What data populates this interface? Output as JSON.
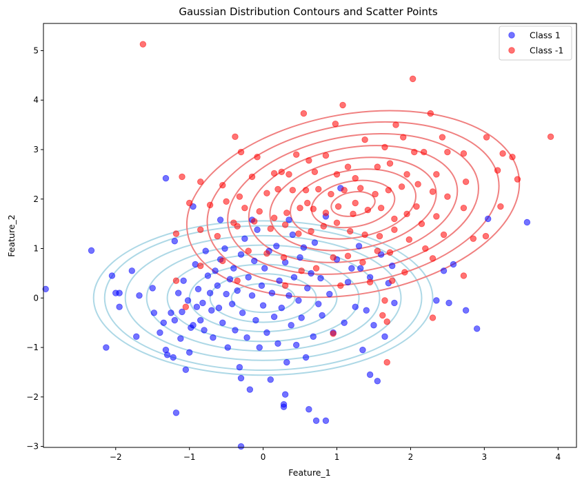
{
  "chart_data": {
    "type": "scatter",
    "title": "Gaussian Distribution Contours and Scatter Points",
    "xlabel": "Feature_1",
    "ylabel": "Feature_2",
    "xlim": [
      -2.98,
      4.25
    ],
    "ylim": [
      -3.02,
      5.55
    ],
    "xticks": [
      -2,
      -1,
      0,
      1,
      2,
      3,
      4
    ],
    "yticks": [
      -3,
      -2,
      -1,
      0,
      1,
      2,
      3,
      4,
      5
    ],
    "grid": false,
    "legend": {
      "placement": "top-right"
    },
    "series": [
      {
        "name": "Class 1",
        "color": "#0000ff",
        "points": [
          [
            -2.33,
            0.96
          ],
          [
            -2.95,
            0.18
          ],
          [
            -2.13,
            -1.0
          ],
          [
            -2.05,
            0.45
          ],
          [
            -2.0,
            0.1
          ],
          [
            -1.95,
            0.1
          ],
          [
            -1.95,
            -0.18
          ],
          [
            -1.78,
            0.55
          ],
          [
            -1.72,
            -0.78
          ],
          [
            -1.68,
            0.05
          ],
          [
            -1.32,
            2.42
          ],
          [
            -1.5,
            0.2
          ],
          [
            -1.48,
            -0.3
          ],
          [
            -1.4,
            -0.7
          ],
          [
            -1.35,
            -0.5
          ],
          [
            -1.32,
            -1.05
          ],
          [
            -1.3,
            -1.15
          ],
          [
            -1.25,
            -0.3
          ],
          [
            -1.22,
            -1.2
          ],
          [
            -1.2,
            -0.45
          ],
          [
            -1.18,
            -2.32
          ],
          [
            -1.15,
            0.1
          ],
          [
            -1.12,
            -0.82
          ],
          [
            -1.1,
            -0.28
          ],
          [
            -1.08,
            0.35
          ],
          [
            -1.05,
            -1.45
          ],
          [
            -1.02,
            -0.05
          ],
          [
            -1.0,
            -1.1
          ],
          [
            -0.98,
            -0.6
          ],
          [
            -0.95,
            -0.55
          ],
          [
            -0.92,
            0.68
          ],
          [
            -0.9,
            -0.18
          ],
          [
            -0.88,
            0.18
          ],
          [
            -0.85,
            -0.45
          ],
          [
            -0.82,
            -0.1
          ],
          [
            -0.8,
            -0.65
          ],
          [
            -0.78,
            0.95
          ],
          [
            -0.75,
            0.45
          ],
          [
            -0.72,
            0.1
          ],
          [
            -0.7,
            -0.25
          ],
          [
            -0.68,
            -0.8
          ],
          [
            -0.65,
            0.55
          ],
          [
            -0.62,
            0.25
          ],
          [
            -0.6,
            -0.2
          ],
          [
            -0.58,
            0.78
          ],
          [
            -0.55,
            -0.5
          ],
          [
            -0.52,
            1.0
          ],
          [
            -0.5,
            0.08
          ],
          [
            -0.48,
            -1.0
          ],
          [
            -0.45,
            0.38
          ],
          [
            -0.42,
            -0.12
          ],
          [
            -0.4,
            0.6
          ],
          [
            -0.38,
            -0.65
          ],
          [
            -0.35,
            0.15
          ],
          [
            -0.32,
            -1.4
          ],
          [
            -0.3,
            0.88
          ],
          [
            -0.28,
            -0.3
          ],
          [
            -0.25,
            1.2
          ],
          [
            -0.22,
            -0.8
          ],
          [
            -0.2,
            0.42
          ],
          [
            -0.18,
            -1.85
          ],
          [
            -0.15,
            0.05
          ],
          [
            -0.12,
            0.75
          ],
          [
            -0.1,
            -0.45
          ],
          [
            -0.08,
            1.38
          ],
          [
            -0.05,
            -1.0
          ],
          [
            -0.02,
            0.25
          ],
          [
            0.0,
            -0.15
          ],
          [
            0.02,
            0.6
          ],
          [
            0.05,
            -0.7
          ],
          [
            0.08,
            0.95
          ],
          [
            0.1,
            -1.65
          ],
          [
            0.12,
            0.1
          ],
          [
            0.15,
            -0.38
          ],
          [
            0.18,
            1.05
          ],
          [
            0.2,
            -0.92
          ],
          [
            0.22,
            0.35
          ],
          [
            0.25,
            -0.2
          ],
          [
            0.28,
            -2.2
          ],
          [
            0.3,
            0.72
          ],
          [
            0.32,
            -1.3
          ],
          [
            0.35,
            0.05
          ],
          [
            0.38,
            -0.55
          ],
          [
            0.4,
            1.28
          ],
          [
            0.42,
            0.42
          ],
          [
            0.45,
            -0.95
          ],
          [
            0.48,
            -0.05
          ],
          [
            0.5,
            0.82
          ],
          [
            0.52,
            -0.4
          ],
          [
            0.55,
            1.02
          ],
          [
            0.58,
            -1.2
          ],
          [
            0.6,
            0.2
          ],
          [
            0.62,
            -2.25
          ],
          [
            0.65,
            0.5
          ],
          [
            0.68,
            -0.78
          ],
          [
            0.7,
            1.12
          ],
          [
            0.72,
            -2.48
          ],
          [
            0.75,
            -0.12
          ],
          [
            0.78,
            0.4
          ],
          [
            0.8,
            -0.35
          ],
          [
            0.85,
            -2.48
          ],
          [
            0.85,
            1.65
          ],
          [
            0.9,
            0.08
          ],
          [
            0.95,
            -0.7
          ],
          [
            1.0,
            0.78
          ],
          [
            1.05,
            2.22
          ],
          [
            1.1,
            -0.5
          ],
          [
            1.15,
            0.32
          ],
          [
            1.2,
            0.6
          ],
          [
            1.25,
            -0.18
          ],
          [
            1.3,
            1.05
          ],
          [
            1.35,
            -1.05
          ],
          [
            1.4,
            -0.25
          ],
          [
            1.45,
            0.42
          ],
          [
            1.5,
            -0.55
          ],
          [
            1.55,
            -1.68
          ],
          [
            1.6,
            0.88
          ],
          [
            1.65,
            -0.78
          ],
          [
            1.7,
            0.3
          ],
          [
            1.78,
            -0.1
          ],
          [
            1.45,
            -1.55
          ],
          [
            1.75,
            0.65
          ],
          [
            2.35,
            -0.05
          ],
          [
            2.45,
            0.55
          ],
          [
            2.52,
            -0.1
          ],
          [
            2.58,
            0.68
          ],
          [
            2.75,
            -0.25
          ],
          [
            2.9,
            -0.62
          ],
          [
            3.05,
            1.6
          ],
          [
            3.58,
            1.53
          ],
          [
            -0.3,
            -3.0
          ],
          [
            0.28,
            -2.15
          ],
          [
            0.3,
            -1.95
          ],
          [
            -0.95,
            1.85
          ],
          [
            -0.58,
            1.58
          ],
          [
            -0.15,
            1.58
          ],
          [
            0.35,
            1.58
          ],
          [
            -1.2,
            1.15
          ],
          [
            1.32,
            0.6
          ],
          [
            -0.3,
            -1.62
          ]
        ]
      },
      {
        "name": "Class -1",
        "color": "#ff0000",
        "points": [
          [
            -1.63,
            5.13
          ],
          [
            2.03,
            4.43
          ],
          [
            1.08,
            3.9
          ],
          [
            3.9,
            3.26
          ],
          [
            2.27,
            3.73
          ],
          [
            0.55,
            3.73
          ],
          [
            -0.38,
            3.26
          ],
          [
            0.98,
            3.52
          ],
          [
            1.8,
            3.5
          ],
          [
            3.03,
            3.25
          ],
          [
            2.43,
            3.25
          ],
          [
            1.9,
            3.25
          ],
          [
            1.38,
            3.2
          ],
          [
            2.05,
            2.95
          ],
          [
            2.18,
            2.95
          ],
          [
            2.5,
            2.95
          ],
          [
            1.65,
            3.05
          ],
          [
            2.72,
            2.92
          ],
          [
            3.25,
            2.92
          ],
          [
            3.38,
            2.85
          ],
          [
            0.45,
            2.9
          ],
          [
            0.62,
            2.78
          ],
          [
            0.85,
            2.88
          ],
          [
            1.15,
            2.65
          ],
          [
            -0.3,
            2.95
          ],
          [
            -0.08,
            2.85
          ],
          [
            0.25,
            2.55
          ],
          [
            0.35,
            2.5
          ],
          [
            0.7,
            2.55
          ],
          [
            1.0,
            2.5
          ],
          [
            1.25,
            2.42
          ],
          [
            1.55,
            2.65
          ],
          [
            1.72,
            2.72
          ],
          [
            1.95,
            2.5
          ],
          [
            2.1,
            2.3
          ],
          [
            2.35,
            2.5
          ],
          [
            2.75,
            2.35
          ],
          [
            3.18,
            2.58
          ],
          [
            3.45,
            2.4
          ],
          [
            -1.1,
            2.45
          ],
          [
            -0.85,
            2.35
          ],
          [
            -0.55,
            2.28
          ],
          [
            -0.32,
            2.05
          ],
          [
            -0.15,
            2.45
          ],
          [
            0.05,
            2.12
          ],
          [
            0.2,
            2.2
          ],
          [
            0.4,
            2.18
          ],
          [
            0.58,
            2.18
          ],
          [
            0.75,
            2.2
          ],
          [
            0.92,
            2.1
          ],
          [
            1.1,
            2.18
          ],
          [
            1.32,
            2.22
          ],
          [
            1.52,
            2.1
          ],
          [
            1.7,
            2.18
          ],
          [
            1.88,
            2.25
          ],
          [
            2.08,
            1.85
          ],
          [
            2.3,
            2.15
          ],
          [
            2.5,
            2.05
          ],
          [
            -1.0,
            1.92
          ],
          [
            -0.72,
            1.88
          ],
          [
            -0.5,
            1.95
          ],
          [
            -0.25,
            1.82
          ],
          [
            -0.05,
            1.75
          ],
          [
            0.15,
            1.62
          ],
          [
            0.32,
            1.72
          ],
          [
            0.5,
            1.82
          ],
          [
            0.68,
            1.8
          ],
          [
            0.85,
            1.72
          ],
          [
            1.02,
            1.85
          ],
          [
            1.22,
            1.7
          ],
          [
            1.42,
            1.78
          ],
          [
            1.6,
            1.82
          ],
          [
            1.78,
            1.6
          ],
          [
            1.95,
            1.7
          ],
          [
            2.15,
            1.5
          ],
          [
            2.35,
            1.65
          ],
          [
            2.72,
            1.82
          ],
          [
            3.22,
            1.85
          ],
          [
            -1.18,
            1.3
          ],
          [
            -0.85,
            1.38
          ],
          [
            -0.62,
            1.25
          ],
          [
            -0.35,
            1.45
          ],
          [
            -0.12,
            1.55
          ],
          [
            0.1,
            1.4
          ],
          [
            0.3,
            1.48
          ],
          [
            0.48,
            1.3
          ],
          [
            0.65,
            1.35
          ],
          [
            0.82,
            1.45
          ],
          [
            1.0,
            1.52
          ],
          [
            1.18,
            1.35
          ],
          [
            1.38,
            1.28
          ],
          [
            1.58,
            1.25
          ],
          [
            1.78,
            1.38
          ],
          [
            1.98,
            1.18
          ],
          [
            2.2,
            1.0
          ],
          [
            2.45,
            1.28
          ],
          [
            2.85,
            1.2
          ],
          [
            3.02,
            1.25
          ],
          [
            -0.85,
            0.65
          ],
          [
            -0.55,
            0.75
          ],
          [
            -0.2,
            0.95
          ],
          [
            0.05,
            0.9
          ],
          [
            0.28,
            0.82
          ],
          [
            0.52,
            0.55
          ],
          [
            0.72,
            0.6
          ],
          [
            0.95,
            0.82
          ],
          [
            1.15,
            0.85
          ],
          [
            1.35,
            0.72
          ],
          [
            1.55,
            0.95
          ],
          [
            1.72,
            0.92
          ],
          [
            1.92,
            0.52
          ],
          [
            2.3,
            0.8
          ],
          [
            2.72,
            0.45
          ],
          [
            -1.18,
            0.35
          ],
          [
            -1.05,
            -0.18
          ],
          [
            -0.35,
            0.35
          ],
          [
            0.3,
            0.25
          ],
          [
            0.95,
            -0.72
          ],
          [
            1.05,
            0.25
          ],
          [
            1.45,
            0.32
          ],
          [
            1.75,
            0.35
          ],
          [
            1.65,
            -0.05
          ],
          [
            1.62,
            -0.35
          ],
          [
            1.68,
            -0.48
          ],
          [
            1.68,
            -1.3
          ],
          [
            2.3,
            -0.4
          ],
          [
            0.6,
            1.92
          ],
          [
            1.25,
            1.92
          ],
          [
            -0.4,
            1.52
          ],
          [
            0.15,
            2.52
          ]
        ]
      }
    ],
    "contours": [
      {
        "name": "Class 1",
        "color": "#add8e6",
        "center": [
          0.0,
          0.0
        ],
        "semi_axes": [
          [
            2.3,
            1.56
          ],
          [
            2.15,
            1.46
          ],
          [
            1.87,
            1.26
          ],
          [
            1.58,
            1.07
          ],
          [
            1.3,
            0.88
          ],
          [
            1.0,
            0.68
          ],
          [
            0.72,
            0.49
          ],
          [
            0.43,
            0.29
          ]
        ],
        "angle_deg": 0
      },
      {
        "name": "Class -1",
        "color": "#f08080",
        "center": [
          1.22,
          1.9
        ],
        "semi_axes": [
          [
            2.28,
            1.82
          ],
          [
            2.0,
            1.6
          ],
          [
            1.72,
            1.37
          ],
          [
            1.43,
            1.14
          ],
          [
            1.14,
            0.91
          ],
          [
            0.86,
            0.68
          ],
          [
            0.57,
            0.46
          ],
          [
            0.3,
            0.24
          ]
        ],
        "angle_deg": 10
      }
    ]
  }
}
